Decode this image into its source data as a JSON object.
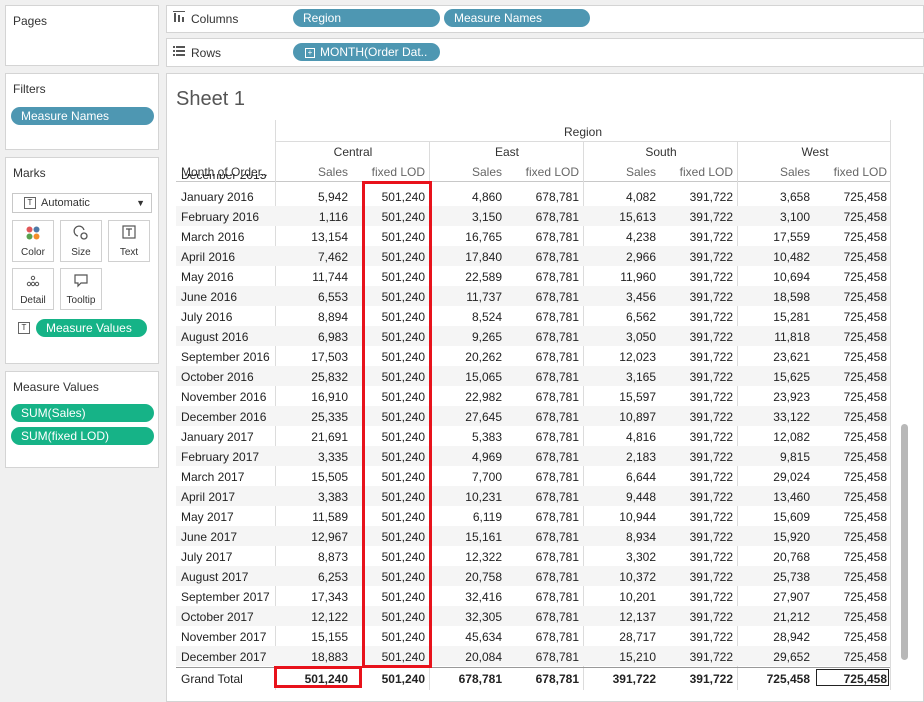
{
  "pages": {
    "title": "Pages"
  },
  "columns": {
    "label": "Columns",
    "pills": [
      "Region",
      "Measure Names"
    ]
  },
  "rows": {
    "label": "Rows",
    "pill": "MONTH(Order Dat.."
  },
  "filters": {
    "title": "Filters",
    "pills": [
      "Measure Names"
    ]
  },
  "marks": {
    "title": "Marks",
    "type": "Automatic",
    "buttons": [
      "Color",
      "Size",
      "Text",
      "Detail",
      "Tooltip"
    ],
    "text_pill": "Measure Values"
  },
  "measure_values": {
    "title": "Measure Values",
    "pills": [
      "SUM(Sales)",
      "SUM(fixed LOD)"
    ]
  },
  "sheet": {
    "title": "Sheet 1",
    "region_header": "Region",
    "row_header": "Month of Order..",
    "cut_row": "December 2015",
    "regions": [
      "Central",
      "East",
      "South",
      "West"
    ],
    "measures": [
      "Sales",
      "fixed LOD"
    ],
    "rows": [
      {
        "label": "January 2016",
        "v": [
          "5,942",
          "501,240",
          "4,860",
          "678,781",
          "4,082",
          "391,722",
          "3,658",
          "725,458"
        ]
      },
      {
        "label": "February 2016",
        "v": [
          "1,116",
          "501,240",
          "3,150",
          "678,781",
          "15,613",
          "391,722",
          "3,100",
          "725,458"
        ]
      },
      {
        "label": "March 2016",
        "v": [
          "13,154",
          "501,240",
          "16,765",
          "678,781",
          "4,238",
          "391,722",
          "17,559",
          "725,458"
        ]
      },
      {
        "label": "April 2016",
        "v": [
          "7,462",
          "501,240",
          "17,840",
          "678,781",
          "2,966",
          "391,722",
          "10,482",
          "725,458"
        ]
      },
      {
        "label": "May 2016",
        "v": [
          "11,744",
          "501,240",
          "22,589",
          "678,781",
          "11,960",
          "391,722",
          "10,694",
          "725,458"
        ]
      },
      {
        "label": "June 2016",
        "v": [
          "6,553",
          "501,240",
          "11,737",
          "678,781",
          "3,456",
          "391,722",
          "18,598",
          "725,458"
        ]
      },
      {
        "label": "July 2016",
        "v": [
          "8,894",
          "501,240",
          "8,524",
          "678,781",
          "6,562",
          "391,722",
          "15,281",
          "725,458"
        ]
      },
      {
        "label": "August 2016",
        "v": [
          "6,983",
          "501,240",
          "9,265",
          "678,781",
          "3,050",
          "391,722",
          "11,818",
          "725,458"
        ]
      },
      {
        "label": "September 2016",
        "v": [
          "17,503",
          "501,240",
          "20,262",
          "678,781",
          "12,023",
          "391,722",
          "23,621",
          "725,458"
        ]
      },
      {
        "label": "October 2016",
        "v": [
          "25,832",
          "501,240",
          "15,065",
          "678,781",
          "3,165",
          "391,722",
          "15,625",
          "725,458"
        ]
      },
      {
        "label": "November 2016",
        "v": [
          "16,910",
          "501,240",
          "22,982",
          "678,781",
          "15,597",
          "391,722",
          "23,923",
          "725,458"
        ]
      },
      {
        "label": "December 2016",
        "v": [
          "25,335",
          "501,240",
          "27,645",
          "678,781",
          "10,897",
          "391,722",
          "33,122",
          "725,458"
        ]
      },
      {
        "label": "January 2017",
        "v": [
          "21,691",
          "501,240",
          "5,383",
          "678,781",
          "4,816",
          "391,722",
          "12,082",
          "725,458"
        ]
      },
      {
        "label": "February 2017",
        "v": [
          "3,335",
          "501,240",
          "4,969",
          "678,781",
          "2,183",
          "391,722",
          "9,815",
          "725,458"
        ]
      },
      {
        "label": "March 2017",
        "v": [
          "15,505",
          "501,240",
          "7,700",
          "678,781",
          "6,644",
          "391,722",
          "29,024",
          "725,458"
        ]
      },
      {
        "label": "April 2017",
        "v": [
          "3,383",
          "501,240",
          "10,231",
          "678,781",
          "9,448",
          "391,722",
          "13,460",
          "725,458"
        ]
      },
      {
        "label": "May 2017",
        "v": [
          "11,589",
          "501,240",
          "6,119",
          "678,781",
          "10,944",
          "391,722",
          "15,609",
          "725,458"
        ]
      },
      {
        "label": "June 2017",
        "v": [
          "12,967",
          "501,240",
          "15,161",
          "678,781",
          "8,934",
          "391,722",
          "15,920",
          "725,458"
        ]
      },
      {
        "label": "July 2017",
        "v": [
          "8,873",
          "501,240",
          "12,322",
          "678,781",
          "3,302",
          "391,722",
          "20,768",
          "725,458"
        ]
      },
      {
        "label": "August 2017",
        "v": [
          "6,253",
          "501,240",
          "20,758",
          "678,781",
          "10,372",
          "391,722",
          "25,738",
          "725,458"
        ]
      },
      {
        "label": "September 2017",
        "v": [
          "17,343",
          "501,240",
          "32,416",
          "678,781",
          "10,201",
          "391,722",
          "27,907",
          "725,458"
        ]
      },
      {
        "label": "October 2017",
        "v": [
          "12,122",
          "501,240",
          "32,305",
          "678,781",
          "12,137",
          "391,722",
          "21,212",
          "725,458"
        ]
      },
      {
        "label": "November 2017",
        "v": [
          "15,155",
          "501,240",
          "45,634",
          "678,781",
          "28,717",
          "391,722",
          "28,942",
          "725,458"
        ]
      },
      {
        "label": "December 2017",
        "v": [
          "18,883",
          "501,240",
          "20,084",
          "678,781",
          "15,210",
          "391,722",
          "29,652",
          "725,458"
        ]
      }
    ],
    "grand_total": {
      "label": "Grand Total",
      "v": [
        "501,240",
        "501,240",
        "678,781",
        "678,781",
        "391,722",
        "391,722",
        "725,458",
        "725,458"
      ]
    }
  },
  "colors": {
    "blue_pill": "#4e97b2",
    "green_pill": "#16b387",
    "highlight": "#e8121b"
  }
}
